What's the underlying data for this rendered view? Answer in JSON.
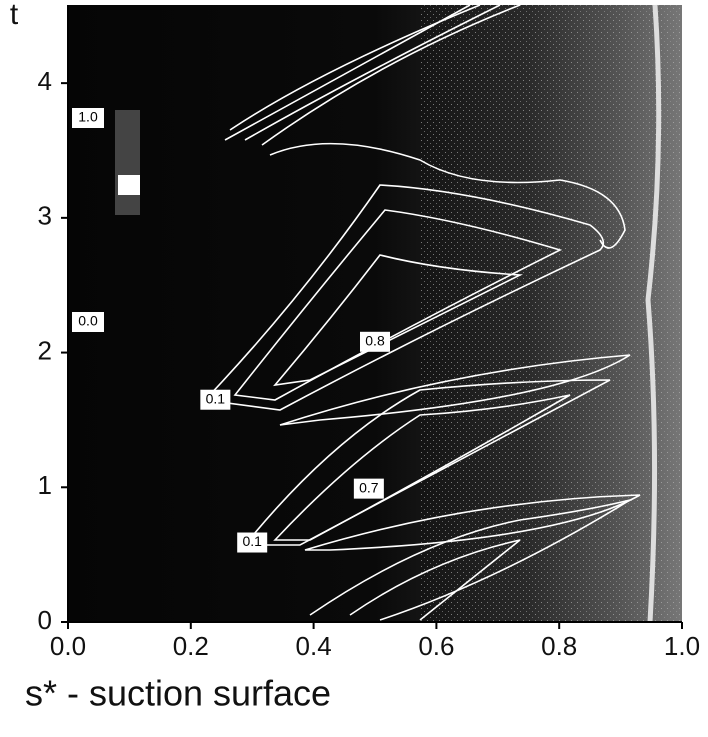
{
  "chart_data": {
    "type": "contour",
    "x_label": "s* - suction surface",
    "y_label": "t",
    "xlim": [
      0,
      1
    ],
    "ylim": [
      0,
      4.58
    ],
    "xticks": [
      {
        "value": 0,
        "label": "0.0"
      },
      0.2,
      0.4,
      0.6,
      0.8,
      {
        "value": 1,
        "label": "1.0"
      }
    ],
    "yticks": [
      0,
      1,
      2,
      3,
      4
    ],
    "colorbar_labels": [
      "1.0",
      "0.0"
    ],
    "contour_labels": [
      {
        "label": "0.1",
        "x": 0.24,
        "y": 1.65
      },
      {
        "label": "0.8",
        "x": 0.5,
        "y": 2.08
      },
      {
        "label": "0.7",
        "x": 0.49,
        "y": 0.99
      },
      {
        "label": "0.1",
        "x": 0.3,
        "y": 0.59
      }
    ]
  }
}
